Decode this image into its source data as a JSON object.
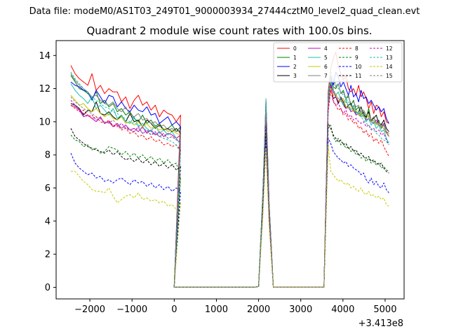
{
  "chart_data": {
    "type": "line",
    "suptitle": "Data file: modeM0/AS1T03_249T01_9000003934_27444cztM0_level2_quad_clean.evt",
    "title": "Quadrant 2 module wise count rates with 100.0s bins.",
    "xlabel": "",
    "ylabel": "",
    "x_offset_label": "+3.413e8",
    "xlim": [
      -2800,
      5450
    ],
    "ylim": [
      -0.7,
      14.9
    ],
    "xticks": [
      -2000,
      -1000,
      0,
      1000,
      2000,
      3000,
      4000,
      5000
    ],
    "xtick_labels": [
      "−2000",
      "−1000",
      "0",
      "1000",
      "2000",
      "3000",
      "4000",
      "5000"
    ],
    "yticks": [
      0,
      2,
      4,
      6,
      8,
      10,
      12,
      14
    ],
    "ytick_labels": [
      "0",
      "2",
      "4",
      "6",
      "8",
      "10",
      "12",
      "14"
    ],
    "legend_position": "top-right",
    "series": [
      {
        "name": "0",
        "color": "#ff0000",
        "dash": "solid",
        "seg1": [
          13.4,
          12.9,
          12.6,
          12.4,
          12.2,
          12.9,
          11.9,
          12.2,
          11.7,
          12.0,
          11.8,
          11.8,
          11.2,
          11.5,
          10.8,
          11.3,
          11.6,
          11.0,
          11.2,
          10.7,
          11.0,
          10.3,
          10.7,
          10.5,
          10.4,
          10.0,
          10.4
        ],
        "peak": 11.3,
        "seg2": [
          11.8,
          13.2,
          13.8,
          14.2,
          13.4,
          12.9,
          12.5,
          12.8,
          12.0,
          11.8,
          12.0,
          11.6,
          12.2,
          11.5,
          11.8,
          11.4,
          10.8,
          11.2,
          10.5,
          11.0,
          10.9,
          10.3,
          10.6,
          10.0,
          9.9
        ]
      },
      {
        "name": "1",
        "color": "#008000",
        "dash": "solid",
        "seg1": [
          12.8,
          12.4,
          12.0,
          11.9,
          11.7,
          11.4,
          11.8,
          11.1,
          11.3,
          10.9,
          11.1,
          10.6,
          10.8,
          10.4,
          10.6,
          10.2,
          10.0,
          10.4,
          9.9,
          10.1,
          9.7,
          9.9,
          9.5,
          9.6,
          9.8,
          9.4,
          9.7
        ],
        "peak": 11.0,
        "seg2": [
          11.4,
          12.6,
          12.1,
          12.0,
          12.3,
          11.7,
          11.9,
          11.4,
          11.6,
          11.0,
          11.3,
          10.7,
          10.9,
          10.4,
          10.6,
          10.2,
          10.8,
          10.0,
          10.3,
          9.9,
          10.1,
          9.6,
          9.8,
          9.4,
          9.3
        ]
      },
      {
        "name": "2",
        "color": "#0000ff",
        "dash": "solid",
        "seg1": [
          12.4,
          12.2,
          12.1,
          11.9,
          11.8,
          11.3,
          11.9,
          11.5,
          11.1,
          11.6,
          11.5,
          10.9,
          11.2,
          10.8,
          10.6,
          11.0,
          10.7,
          10.6,
          10.9,
          10.4,
          10.5,
          9.9,
          10.1,
          10.3,
          9.8,
          10.0,
          9.7
        ],
        "peak": 11.2,
        "seg2": [
          11.5,
          12.7,
          12.2,
          13.0,
          12.7,
          12.1,
          12.4,
          12.0,
          11.6,
          12.2,
          11.5,
          11.7,
          11.2,
          11.9,
          11.4,
          11.5,
          11.1,
          11.3,
          11.0,
          10.7,
          10.9,
          10.6,
          10.8,
          10.2,
          9.9
        ]
      },
      {
        "name": "3",
        "color": "#000000",
        "dash": "solid",
        "seg1": [
          11.1,
          11.0,
          10.8,
          10.4,
          10.7,
          10.6,
          11.2,
          10.5,
          10.4,
          10.6,
          10.3,
          10.1,
          10.4,
          10.0,
          10.5,
          10.0,
          10.1,
          9.7,
          10.1,
          9.9,
          9.6,
          9.8,
          9.5,
          9.6,
          9.4,
          9.6,
          9.3
        ],
        "peak": 10.9,
        "seg2": [
          11.0,
          12.3,
          11.4,
          11.5,
          11.1,
          11.5,
          11.2,
          10.8,
          11.0,
          11.1,
          10.7,
          10.5,
          10.6,
          10.9,
          10.4,
          10.3,
          10.6,
          10.1,
          10.2,
          10.4,
          9.9,
          9.8,
          10.1,
          9.6,
          9.4
        ]
      },
      {
        "name": "4",
        "color": "#bf00bf",
        "dash": "solid",
        "seg1": [
          11.0,
          10.9,
          10.7,
          10.3,
          10.4,
          10.2,
          10.0,
          10.3,
          9.9,
          10.0,
          9.7,
          9.9,
          9.6,
          9.8,
          9.5,
          9.6,
          9.4,
          9.7,
          9.3,
          9.5,
          9.2,
          9.4,
          9.1,
          9.3,
          9.2,
          9.0,
          9.2
        ],
        "peak": 10.6,
        "seg2": [
          10.9,
          12.4,
          11.8,
          11.5,
          11.2,
          11.4,
          11.0,
          10.8,
          10.9,
          10.6,
          10.7,
          10.4,
          10.5,
          10.3,
          10.4,
          10.1,
          10.2,
          10.0,
          9.9,
          10.1,
          9.8,
          9.7,
          9.9,
          9.4,
          9.1
        ]
      },
      {
        "name": "5",
        "color": "#1fbfaf",
        "dash": "solid",
        "seg1": [
          12.3,
          11.9,
          11.6,
          11.4,
          11.1,
          11.5,
          10.8,
          11.0,
          10.7,
          10.4,
          10.8,
          10.2,
          10.4,
          10.0,
          9.9,
          10.3,
          9.7,
          9.9,
          9.6,
          9.4,
          9.8,
          9.3,
          9.5,
          9.2,
          9.4,
          9.0,
          8.6
        ],
        "peak": 11.1,
        "seg2": [
          11.2,
          12.4,
          11.9,
          11.6,
          11.8,
          11.3,
          11.0,
          11.4,
          10.9,
          10.7,
          11.0,
          10.5,
          10.6,
          10.3,
          10.4,
          10.0,
          10.2,
          9.8,
          10.0,
          9.6,
          9.8,
          9.4,
          9.5,
          9.0,
          8.7
        ]
      },
      {
        "name": "6",
        "color": "#c8c800",
        "dash": "solid",
        "seg1": [
          11.6,
          11.3,
          11.0,
          11.1,
          10.8,
          10.6,
          10.8,
          10.5,
          10.3,
          10.5,
          10.2,
          10.1,
          10.3,
          9.9,
          10.0,
          9.8,
          10.0,
          9.7,
          9.9,
          9.6,
          9.7,
          9.5,
          9.6,
          9.4,
          9.5,
          9.3,
          9.2
        ],
        "peak": 10.5,
        "seg2": [
          10.8,
          12.1,
          11.6,
          11.7,
          11.3,
          11.2,
          11.4,
          10.9,
          10.8,
          11.0,
          10.6,
          10.7,
          10.4,
          10.5,
          10.3,
          10.2,
          10.4,
          10.0,
          10.1,
          9.8,
          9.9,
          9.7,
          9.6,
          9.3,
          9.2
        ]
      },
      {
        "name": "7",
        "color": "#808080",
        "dash": "solid",
        "seg1": [
          12.9,
          12.5,
          12.2,
          12.0,
          11.8,
          11.5,
          11.6,
          11.3,
          11.1,
          11.0,
          11.2,
          10.8,
          10.6,
          10.9,
          10.4,
          10.3,
          10.5,
          10.1,
          10.2,
          9.9,
          10.0,
          9.7,
          9.8,
          9.5,
          9.6,
          9.4,
          9.5
        ],
        "peak": 11.0,
        "seg2": [
          11.3,
          12.8,
          12.5,
          12.1,
          12.3,
          11.7,
          11.8,
          11.4,
          11.5,
          11.1,
          11.2,
          10.9,
          11.0,
          10.6,
          10.7,
          10.4,
          10.5,
          10.1,
          10.3,
          9.9,
          10.0,
          9.7,
          9.8,
          9.4,
          9.3
        ]
      },
      {
        "name": "8",
        "color": "#ff0000",
        "dash": "dashed",
        "seg1": [
          11.0,
          10.8,
          10.6,
          10.7,
          10.4,
          10.2,
          10.3,
          10.0,
          9.9,
          10.1,
          9.7,
          9.8,
          9.5,
          9.6,
          9.3,
          9.4,
          9.1,
          9.2,
          8.9,
          9.1,
          8.8,
          8.9,
          8.6,
          8.7,
          8.5,
          8.6,
          8.3
        ],
        "peak": 10.2,
        "seg2": [
          10.6,
          11.9,
          11.2,
          11.0,
          10.7,
          10.8,
          10.4,
          10.5,
          10.1,
          10.2,
          9.9,
          10.0,
          9.6,
          9.7,
          9.3,
          9.5,
          9.1,
          9.3,
          8.8,
          9.0,
          8.7,
          8.9,
          8.5,
          8.2,
          7.9
        ]
      },
      {
        "name": "9",
        "color": "#008000",
        "dash": "dashed",
        "seg1": [
          9.2,
          8.9,
          8.8,
          8.5,
          8.6,
          8.3,
          8.4,
          8.1,
          8.2,
          8.5,
          8.4,
          8.3,
          8.0,
          8.2,
          7.9,
          8.1,
          7.8,
          8.0,
          7.7,
          7.9,
          7.6,
          7.8,
          7.5,
          7.7,
          7.4,
          7.5,
          6.6
        ],
        "peak": 9.3,
        "seg2": [
          9.6,
          9.8,
          9.1,
          8.8,
          9.0,
          8.6,
          8.7,
          8.4,
          8.5,
          8.2,
          8.3,
          8.0,
          8.1,
          7.8,
          7.9,
          7.6,
          7.8,
          7.5,
          7.6,
          7.4,
          7.5,
          7.2,
          7.3,
          7.1,
          7.0
        ]
      },
      {
        "name": "10",
        "color": "#0000ff",
        "dash": "dashed",
        "seg1": [
          8.1,
          7.5,
          7.2,
          7.0,
          6.8,
          6.9,
          6.6,
          6.7,
          6.4,
          6.5,
          6.3,
          6.5,
          6.6,
          6.4,
          6.2,
          6.5,
          6.3,
          6.4,
          6.1,
          6.3,
          6.0,
          6.2,
          5.9,
          6.1,
          5.8,
          6.0,
          5.8
        ],
        "peak": 8.9,
        "seg2": [
          9.0,
          8.7,
          8.2,
          8.0,
          7.8,
          7.7,
          7.5,
          7.6,
          7.3,
          7.4,
          7.2,
          7.1,
          7.0,
          6.8,
          6.9,
          6.5,
          6.3,
          6.6,
          6.2,
          6.4,
          6.1,
          6.0,
          6.3,
          5.9,
          5.7
        ]
      },
      {
        "name": "11",
        "color": "#000000",
        "dash": "dashed",
        "seg1": [
          9.6,
          9.1,
          8.9,
          8.7,
          8.5,
          8.4,
          8.3,
          8.2,
          8.1,
          8.3,
          8.0,
          8.2,
          7.9,
          7.7,
          7.8,
          7.6,
          7.8,
          7.5,
          7.7,
          7.4,
          7.6,
          7.3,
          7.5,
          7.2,
          7.4,
          7.1,
          7.3
        ],
        "peak": 9.7,
        "seg2": [
          9.9,
          9.6,
          9.2,
          9.0,
          8.8,
          8.9,
          8.6,
          8.7,
          8.4,
          8.5,
          8.2,
          8.3,
          8.0,
          8.1,
          7.9,
          7.8,
          7.9,
          7.6,
          7.7,
          7.5,
          7.4,
          7.5,
          7.2,
          7.0,
          6.9
        ]
      },
      {
        "name": "12",
        "color": "#bf00bf",
        "dash": "dashed",
        "seg1": [
          11.3,
          11.0,
          10.7,
          10.5,
          10.3,
          10.4,
          10.1,
          10.2,
          9.9,
          10.0,
          9.8,
          9.7,
          9.9,
          9.6,
          9.5,
          9.4,
          9.7,
          9.3,
          9.5,
          9.2,
          9.4,
          9.1,
          9.3,
          9.0,
          9.1,
          8.9,
          8.8
        ],
        "peak": 10.4,
        "seg2": [
          10.7,
          12.2,
          11.3,
          11.0,
          11.1,
          10.8,
          10.5,
          10.7,
          10.3,
          10.4,
          10.1,
          10.2,
          10.0,
          9.9,
          10.0,
          9.7,
          9.8,
          9.5,
          9.6,
          9.4,
          9.5,
          9.2,
          9.3,
          8.9,
          8.6
        ]
      },
      {
        "name": "13",
        "color": "#1fbfaf",
        "dash": "dashed",
        "seg1": [
          13.0,
          12.6,
          12.3,
          12.0,
          11.7,
          11.5,
          11.3,
          11.1,
          10.9,
          10.8,
          10.6,
          10.5,
          10.3,
          10.2,
          10.0,
          9.9,
          9.8,
          9.6,
          9.5,
          9.4,
          9.3,
          9.1,
          9.0,
          8.9,
          8.8,
          8.6,
          8.1
        ],
        "peak": 11.4,
        "seg2": [
          11.6,
          13.1,
          12.5,
          12.3,
          12.0,
          11.8,
          11.6,
          11.4,
          11.2,
          11.0,
          10.8,
          10.6,
          10.4,
          10.3,
          10.1,
          9.9,
          9.8,
          9.6,
          9.5,
          9.3,
          9.2,
          9.0,
          8.9,
          8.8,
          8.6
        ]
      },
      {
        "name": "14",
        "color": "#c8c800",
        "dash": "dashed",
        "seg1": [
          7.0,
          7.0,
          6.7,
          6.4,
          6.2,
          5.9,
          5.8,
          5.8,
          5.7,
          6.0,
          5.5,
          5.1,
          5.3,
          5.5,
          5.6,
          5.4,
          5.7,
          5.3,
          5.4,
          5.2,
          5.3,
          5.1,
          5.2,
          4.9,
          5.0,
          4.7,
          5.1
        ],
        "peak": 8.4,
        "seg2": [
          8.6,
          7.0,
          6.8,
          6.6,
          6.4,
          6.5,
          6.3,
          6.2,
          6.3,
          6.0,
          6.1,
          5.9,
          5.8,
          6.0,
          5.7,
          5.6,
          5.8,
          5.5,
          5.6,
          5.4,
          5.5,
          5.3,
          5.4,
          5.0,
          4.9
        ]
      },
      {
        "name": "15",
        "color": "#808080",
        "dash": "dashed",
        "seg1": [
          11.5,
          11.2,
          11.0,
          10.8,
          10.6,
          10.5,
          10.3,
          10.2,
          10.0,
          9.9,
          10.1,
          9.8,
          9.6,
          9.7,
          9.5,
          9.4,
          9.6,
          9.3,
          9.4,
          9.2,
          9.3,
          9.1,
          9.2,
          9.0,
          9.1,
          8.9,
          9.0
        ],
        "peak": 10.7,
        "seg2": [
          11.0,
          12.6,
          12.0,
          11.6,
          11.4,
          11.5,
          11.1,
          11.2,
          10.9,
          10.8,
          10.9,
          10.6,
          10.5,
          10.6,
          10.3,
          10.2,
          10.3,
          10.0,
          10.1,
          9.9,
          9.8,
          9.9,
          9.6,
          9.3,
          9.1
        ]
      }
    ]
  }
}
